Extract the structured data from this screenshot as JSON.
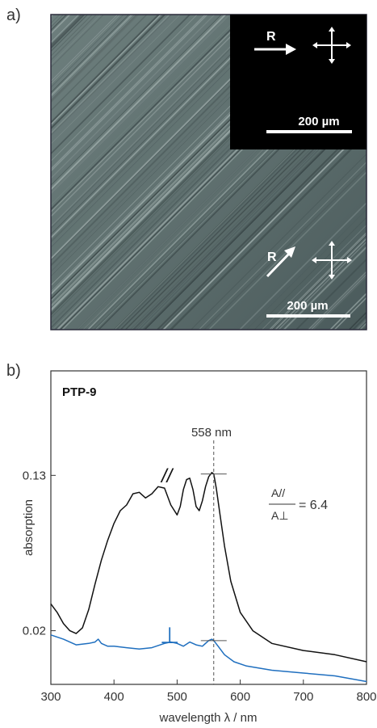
{
  "panel_a": {
    "label": "a)",
    "inset": {
      "direction_label": "R",
      "scalebar_label": "200 µm"
    },
    "main": {
      "direction_label": "R",
      "scalebar_label": "200 µm"
    }
  },
  "panel_b": {
    "label": "b)",
    "sample_name": "PTP-9",
    "peak_label": "558 nm",
    "parallel_symbol": "//",
    "perp_symbol": "⊥",
    "ratio": {
      "numerator": "A//",
      "denominator": "A⊥",
      "value": "= 6.4"
    }
  },
  "chart_data": {
    "type": "line",
    "title": "",
    "xlabel": "wavelength λ / nm",
    "ylabel": "absorption",
    "xlim": [
      300,
      800
    ],
    "ylim": [
      -0.018,
      0.204
    ],
    "x_ticks": [
      300,
      400,
      500,
      600,
      700,
      800
    ],
    "y_ticks": [
      0.02,
      0.13
    ],
    "y_tick_labels": [
      "0.02",
      "0.13"
    ],
    "colors": {
      "parallel": "#111111",
      "perpendicular": "#1f6fbf",
      "axis": "#333333"
    },
    "series": [
      {
        "name": "//",
        "x": [
          300,
          310,
          320,
          330,
          340,
          350,
          360,
          370,
          380,
          390,
          400,
          410,
          420,
          425,
          430,
          440,
          450,
          460,
          470,
          480,
          490,
          500,
          505,
          510,
          515,
          520,
          525,
          530,
          535,
          540,
          545,
          550,
          555,
          558,
          562,
          568,
          575,
          585,
          600,
          620,
          650,
          700,
          750,
          800
        ],
        "y": [
          0.039,
          0.033,
          0.025,
          0.02,
          0.018,
          0.022,
          0.035,
          0.053,
          0.07,
          0.084,
          0.096,
          0.105,
          0.109,
          0.113,
          0.117,
          0.118,
          0.114,
          0.117,
          0.122,
          0.121,
          0.109,
          0.102,
          0.108,
          0.12,
          0.127,
          0.128,
          0.12,
          0.108,
          0.105,
          0.112,
          0.122,
          0.129,
          0.132,
          0.131,
          0.121,
          0.102,
          0.08,
          0.055,
          0.033,
          0.02,
          0.011,
          0.006,
          0.003,
          -0.002
        ]
      },
      {
        "name": "⊥",
        "x": [
          300,
          320,
          340,
          360,
          370,
          375,
          380,
          390,
          400,
          420,
          440,
          460,
          480,
          490,
          500,
          510,
          520,
          530,
          540,
          550,
          555,
          558,
          565,
          575,
          590,
          610,
          650,
          700,
          750,
          800
        ],
        "y": [
          0.017,
          0.014,
          0.01,
          0.011,
          0.012,
          0.014,
          0.011,
          0.009,
          0.009,
          0.008,
          0.007,
          0.008,
          0.011,
          0.012,
          0.011,
          0.009,
          0.012,
          0.01,
          0.009,
          0.013,
          0.014,
          0.013,
          0.009,
          0.003,
          -0.002,
          -0.005,
          -0.008,
          -0.01,
          -0.012,
          -0.016
        ]
      }
    ],
    "annotations": [
      {
        "text": "558 nm",
        "x": 558
      }
    ]
  }
}
